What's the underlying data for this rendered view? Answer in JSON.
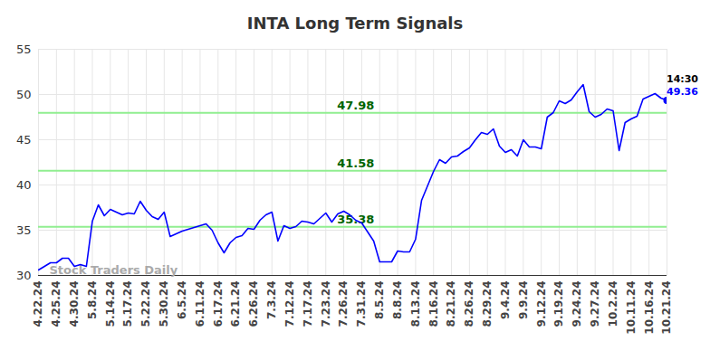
{
  "chart_data": {
    "type": "line",
    "title": "INTA Long Term Signals",
    "categories": [
      "4.22.24",
      null,
      null,
      "4.25.24",
      null,
      null,
      "4.30.24",
      null,
      null,
      "5.8.24",
      null,
      null,
      "5.14.24",
      null,
      null,
      "5.17.24",
      null,
      null,
      "5.22.24",
      null,
      null,
      "5.30.24",
      null,
      null,
      "6.5.24",
      null,
      null,
      "6.11.24",
      null,
      null,
      "6.17.24",
      null,
      null,
      "6.21.24",
      null,
      null,
      "6.26.24",
      null,
      null,
      "7.3.24",
      null,
      null,
      "7.12.24",
      null,
      null,
      "7.17.24",
      null,
      null,
      "7.23.24",
      null,
      null,
      "7.26.24",
      null,
      null,
      "7.31.24",
      null,
      null,
      "8.5.24",
      null,
      null,
      "8.8.24",
      null,
      null,
      "8.13.24",
      null,
      null,
      "8.16.24",
      null,
      null,
      "8.21.24",
      null,
      null,
      "8.26.24",
      null,
      null,
      "8.29.24",
      null,
      null,
      "9.4.24",
      null,
      null,
      "9.9.24",
      null,
      null,
      "9.12.24",
      null,
      null,
      "9.19.24",
      null,
      null,
      "9.24.24",
      null,
      null,
      "9.27.24",
      null,
      null,
      "10.2.24",
      null,
      null,
      "10.11.24",
      null,
      null,
      "10.16.24",
      null,
      null,
      "10.21.24"
    ],
    "values": [
      30.6,
      31.0,
      31.4,
      31.4,
      31.9,
      31.9,
      31.0,
      31.2,
      31.0,
      36.0,
      37.8,
      36.6,
      37.3,
      37.0,
      36.7,
      36.9,
      36.8,
      38.2,
      37.2,
      36.5,
      36.2,
      37.0,
      34.3,
      34.6,
      34.9,
      35.1,
      35.3,
      35.5,
      35.7,
      35.0,
      33.6,
      32.5,
      33.6,
      34.2,
      34.4,
      35.2,
      35.1,
      36.1,
      36.7,
      37.0,
      33.8,
      35.5,
      35.2,
      35.4,
      36.0,
      35.9,
      35.7,
      36.3,
      36.9,
      35.9,
      36.8,
      37.1,
      36.7,
      36.1,
      35.8,
      34.8,
      33.8,
      31.5,
      31.5,
      31.5,
      32.7,
      32.6,
      32.6,
      34.0,
      38.3,
      39.9,
      41.5,
      42.8,
      42.4,
      43.1,
      43.2,
      43.7,
      44.1,
      45.0,
      45.8,
      45.6,
      46.2,
      44.3,
      43.6,
      43.9,
      43.2,
      45.0,
      44.2,
      44.2,
      44.0,
      47.5,
      48.0,
      49.3,
      49.0,
      49.4,
      50.3,
      51.1,
      48.1,
      47.5,
      47.8,
      48.4,
      48.2,
      43.8,
      46.9,
      47.3,
      47.6,
      49.5,
      49.8,
      50.1,
      49.6,
      49.36
    ],
    "color": "#0000ff",
    "ylim": [
      30,
      55
    ],
    "yticks": [
      30,
      35,
      40,
      45,
      50,
      55
    ],
    "grid": true,
    "hlines": [
      47.98,
      41.58,
      35.38
    ],
    "last_point_label": "14:30",
    "watermark": "Stock Traders Daily"
  }
}
